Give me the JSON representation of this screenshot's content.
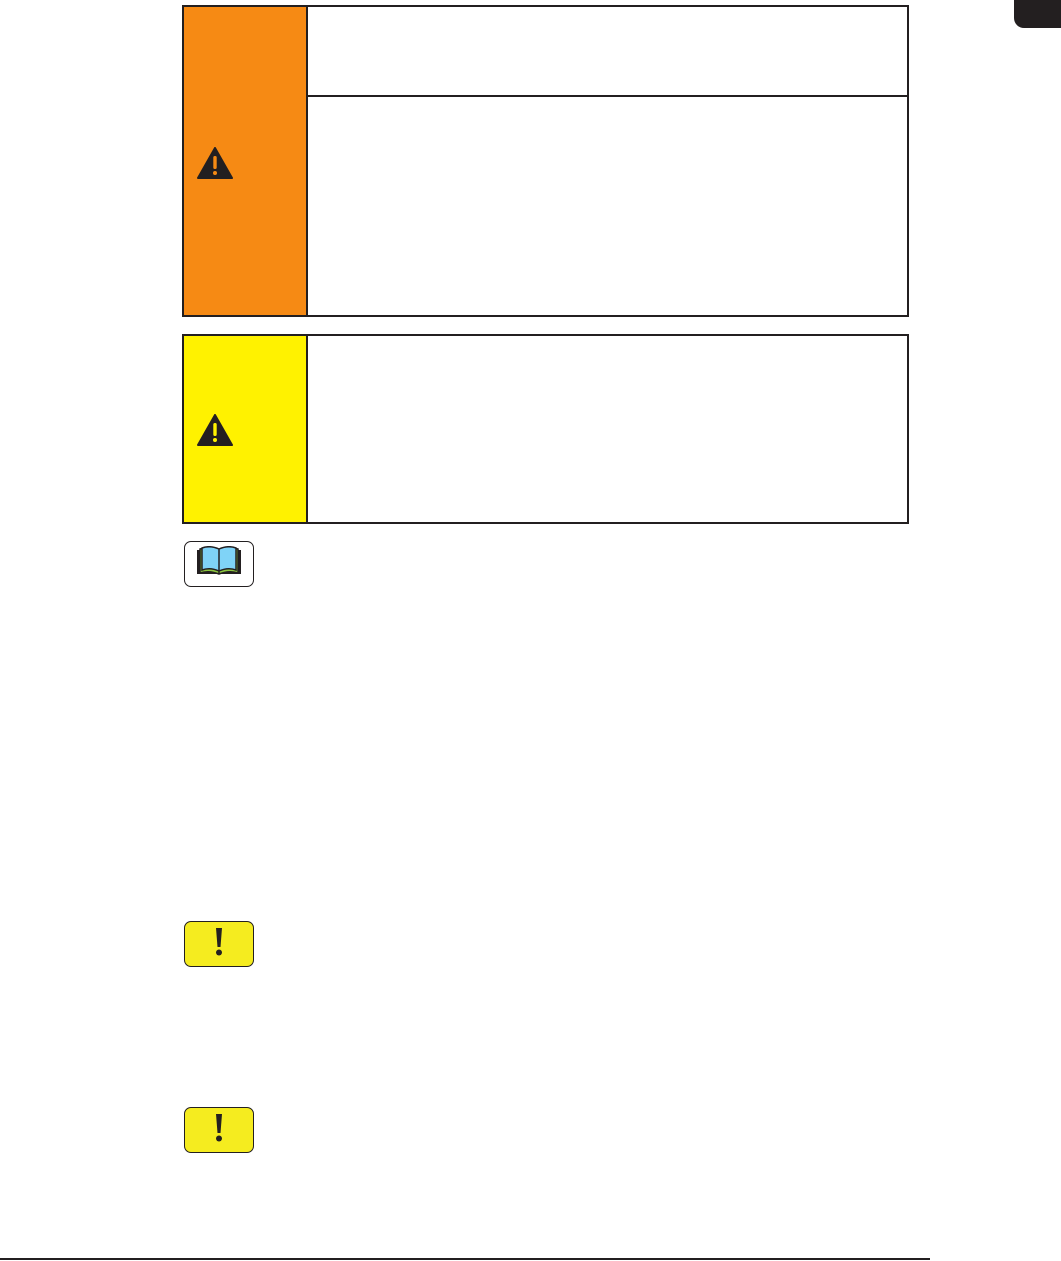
{
  "colors": {
    "warning_band": "#f68a14",
    "caution_band": "#fff200",
    "note_icon_fill": "#f5ec1f",
    "border": "#231f20",
    "tab": "#231f20",
    "book_pages": "#7fd3f7",
    "book_edge": "#8cc63f"
  },
  "icons": {
    "warning_box": "warning-triangle-icon",
    "caution_box": "warning-triangle-icon",
    "manual_reference": "open-book-icon",
    "notes": [
      "exclamation-icon",
      "exclamation-icon"
    ]
  }
}
